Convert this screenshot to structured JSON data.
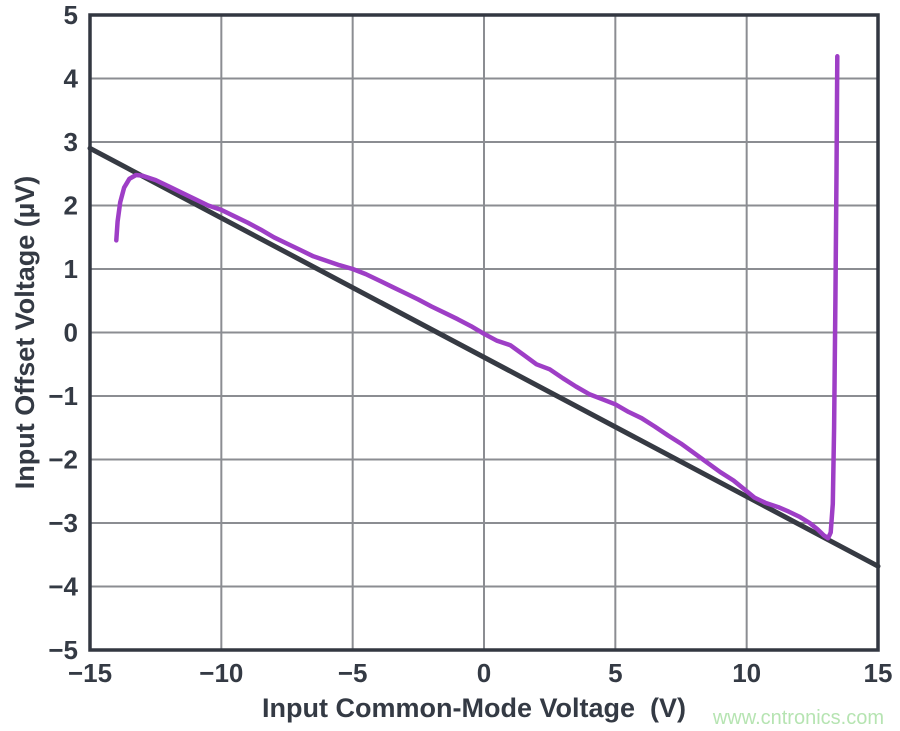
{
  "colors": {
    "background": "#ffffff",
    "axis_frame": "#323741",
    "tick_text": "#343a44",
    "grid": "#8b8d92",
    "black_line": "#363a43",
    "purple_line": "#9e3ec6",
    "watermark": "#b6e4b2"
  },
  "watermark": {
    "text": "www.cntronics.com"
  },
  "chart_data": {
    "type": "line",
    "title": "",
    "xlabel": "Input Common-Mode Voltage  (V)",
    "ylabel": "Input Offset Voltage (µV)",
    "xlim": [
      -15,
      15
    ],
    "ylim": [
      -5,
      5
    ],
    "x_ticks": [
      -15,
      -10,
      -5,
      0,
      5,
      10,
      15
    ],
    "y_ticks": [
      -5,
      -4,
      -3,
      -2,
      -1,
      0,
      1,
      2,
      3,
      4,
      5
    ],
    "grid": true,
    "legend": "none",
    "series": [
      {
        "name": "black-reference-line",
        "color_key": "black_line",
        "stroke_width": 5,
        "points": [
          [
            -15,
            2.9
          ],
          [
            15,
            -3.68
          ]
        ]
      },
      {
        "name": "purple-measured-curve",
        "color_key": "purple_line",
        "stroke_width": 4.5,
        "points": [
          [
            -14.0,
            1.45
          ],
          [
            -13.95,
            1.75
          ],
          [
            -13.85,
            2.05
          ],
          [
            -13.7,
            2.28
          ],
          [
            -13.5,
            2.42
          ],
          [
            -13.25,
            2.48
          ],
          [
            -13.0,
            2.47
          ],
          [
            -12.5,
            2.4
          ],
          [
            -12.0,
            2.3
          ],
          [
            -11.5,
            2.2
          ],
          [
            -11.0,
            2.1
          ],
          [
            -10.5,
            2.0
          ],
          [
            -10.0,
            1.93
          ],
          [
            -9.5,
            1.83
          ],
          [
            -9.0,
            1.73
          ],
          [
            -8.5,
            1.62
          ],
          [
            -8.0,
            1.5
          ],
          [
            -7.5,
            1.4
          ],
          [
            -7.0,
            1.3
          ],
          [
            -6.5,
            1.2
          ],
          [
            -6.0,
            1.13
          ],
          [
            -5.5,
            1.06
          ],
          [
            -5.0,
            1.0
          ],
          [
            -4.5,
            0.92
          ],
          [
            -4.0,
            0.82
          ],
          [
            -3.5,
            0.72
          ],
          [
            -3.0,
            0.62
          ],
          [
            -2.5,
            0.52
          ],
          [
            -2.0,
            0.41
          ],
          [
            -1.5,
            0.31
          ],
          [
            -1.0,
            0.21
          ],
          [
            -0.5,
            0.1
          ],
          [
            0.0,
            -0.02
          ],
          [
            0.5,
            -0.13
          ],
          [
            1.0,
            -0.2
          ],
          [
            1.5,
            -0.35
          ],
          [
            2.0,
            -0.5
          ],
          [
            2.5,
            -0.58
          ],
          [
            3.0,
            -0.72
          ],
          [
            3.5,
            -0.85
          ],
          [
            4.0,
            -0.97
          ],
          [
            4.5,
            -1.05
          ],
          [
            5.0,
            -1.13
          ],
          [
            5.5,
            -1.25
          ],
          [
            6.0,
            -1.35
          ],
          [
            6.5,
            -1.48
          ],
          [
            7.0,
            -1.62
          ],
          [
            7.5,
            -1.75
          ],
          [
            8.0,
            -1.9
          ],
          [
            8.5,
            -2.05
          ],
          [
            9.0,
            -2.2
          ],
          [
            9.5,
            -2.33
          ],
          [
            10.0,
            -2.5
          ],
          [
            10.3,
            -2.6
          ],
          [
            10.7,
            -2.68
          ],
          [
            11.2,
            -2.75
          ],
          [
            11.6,
            -2.82
          ],
          [
            12.0,
            -2.9
          ],
          [
            12.4,
            -3.0
          ],
          [
            12.7,
            -3.1
          ],
          [
            12.95,
            -3.2
          ],
          [
            13.1,
            -3.24
          ],
          [
            13.2,
            -3.15
          ],
          [
            13.28,
            -2.7
          ],
          [
            13.33,
            -1.5
          ],
          [
            13.38,
            0.5
          ],
          [
            13.42,
            2.5
          ],
          [
            13.45,
            4.35
          ]
        ]
      }
    ]
  }
}
